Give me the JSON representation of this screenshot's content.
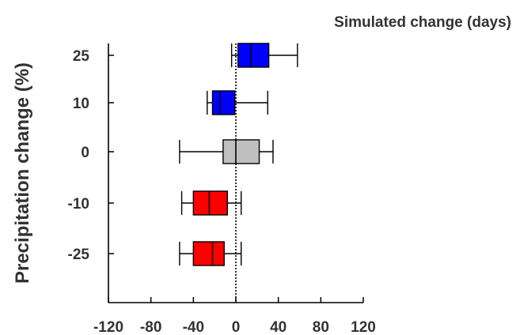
{
  "chart_data": {
    "type": "boxplot",
    "title": "Simulated change (days)",
    "xlabel": "",
    "ylabel": "Precipitation change (%)",
    "xlim": [
      -120,
      120
    ],
    "xticks": [
      "-120",
      "-80",
      "-40",
      "0",
      "40",
      "80",
      "120"
    ],
    "xtick_values": [
      -120,
      -80,
      -40,
      0,
      40,
      80,
      120
    ],
    "categories": [
      "25",
      "10",
      "0",
      "-10",
      "-25"
    ],
    "reference_line": {
      "x": 0,
      "style": "dotted"
    },
    "boxes": [
      {
        "category": "25",
        "whisker_low": -4,
        "q1": 2,
        "median": 14,
        "q3": 31,
        "whisker_high": 58,
        "color": "#0000ff"
      },
      {
        "category": "10",
        "whisker_low": -27,
        "q1": -22,
        "median": -15,
        "q3": -1,
        "whisker_high": 30,
        "color": "#0000ff"
      },
      {
        "category": "0",
        "whisker_low": -53,
        "q1": -12,
        "median": 0,
        "q3": 22,
        "whisker_high": 35,
        "color": "#c0c0c0"
      },
      {
        "category": "-10",
        "whisker_low": -51,
        "q1": -40,
        "median": -25,
        "q3": -8,
        "whisker_high": 5,
        "color": "#ff0000"
      },
      {
        "category": "-25",
        "whisker_low": -53,
        "q1": -40,
        "median": -22,
        "q3": -11,
        "whisker_high": 5,
        "color": "#ff0000"
      }
    ],
    "grid": false,
    "legend": "none"
  }
}
